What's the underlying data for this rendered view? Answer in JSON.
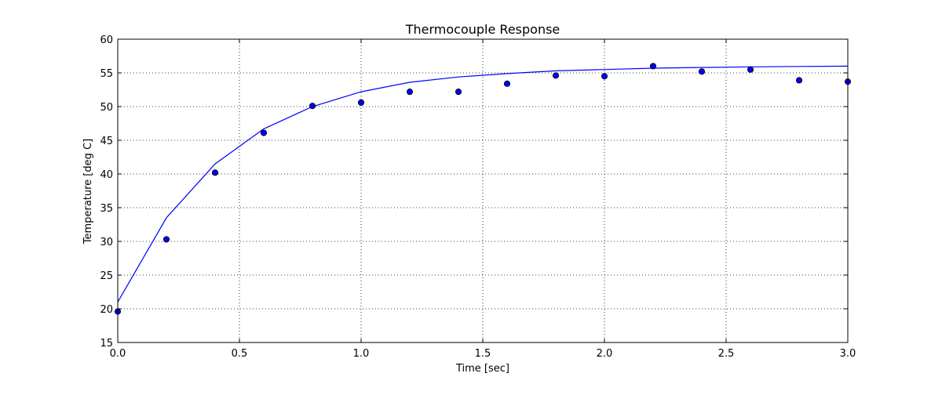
{
  "chart_data": {
    "type": "line",
    "title": "Thermocouple Response",
    "xlabel": "Time [sec]",
    "ylabel": "Temperature [deg C]",
    "xlim": [
      0.0,
      3.0
    ],
    "ylim": [
      15,
      60
    ],
    "xticks": [
      0.0,
      0.5,
      1.0,
      1.5,
      2.0,
      2.5,
      3.0
    ],
    "xtick_labels": [
      "0.0",
      "0.5",
      "1.0",
      "1.5",
      "2.0",
      "2.5",
      "3.0"
    ],
    "yticks": [
      15,
      20,
      25,
      30,
      35,
      40,
      45,
      50,
      55,
      60
    ],
    "ytick_labels": [
      "15",
      "20",
      "25",
      "30",
      "35",
      "40",
      "45",
      "50",
      "55",
      "60"
    ],
    "grid": true,
    "series": [
      {
        "kind": "line",
        "color": "#0000ff",
        "x": [
          0.0,
          0.2,
          0.4,
          0.6,
          0.8,
          1.0,
          1.2,
          1.4,
          1.6,
          1.8,
          2.0,
          2.2,
          2.4,
          2.6,
          2.8,
          3.0
        ],
        "y": [
          21.0,
          33.5,
          41.5,
          46.7,
          50.0,
          52.2,
          53.6,
          54.4,
          54.9,
          55.3,
          55.5,
          55.7,
          55.8,
          55.9,
          55.95,
          56.0
        ]
      },
      {
        "kind": "scatter",
        "color": "#0000ff",
        "edgecolor": "#000000",
        "x": [
          0.0,
          0.2,
          0.4,
          0.6,
          0.8,
          1.0,
          1.2,
          1.4,
          1.6,
          1.8,
          2.0,
          2.2,
          2.4,
          2.6,
          2.8,
          3.0
        ],
        "y": [
          19.6,
          30.3,
          40.2,
          46.1,
          50.1,
          50.6,
          52.2,
          52.2,
          53.4,
          54.6,
          54.5,
          56.0,
          55.2,
          55.5,
          53.9,
          53.7
        ]
      }
    ]
  }
}
